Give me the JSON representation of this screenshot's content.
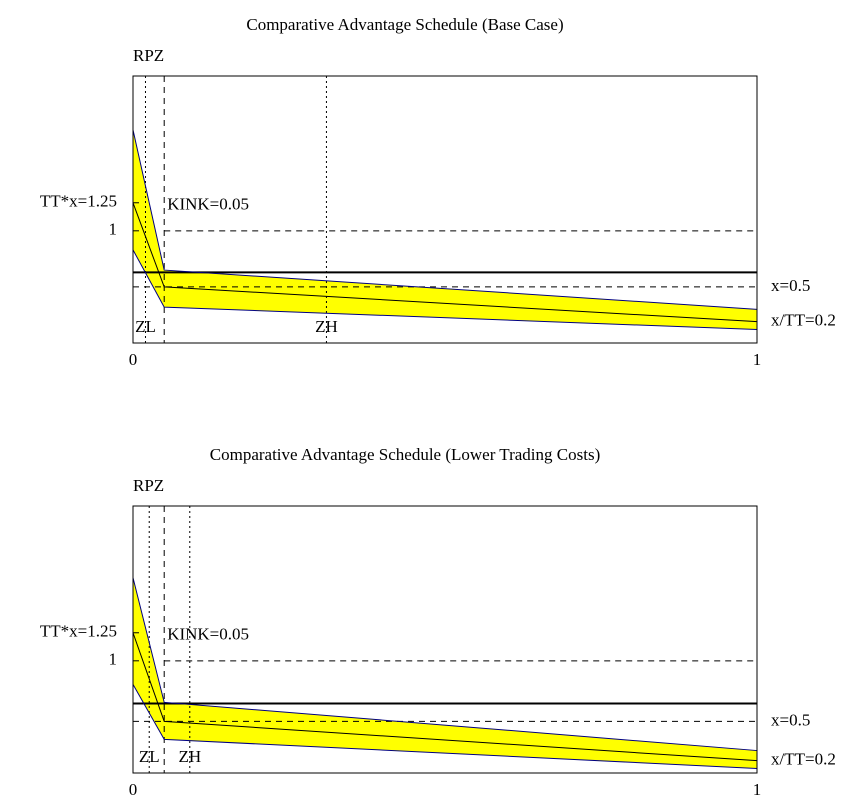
{
  "chart_data": [
    {
      "type": "line",
      "title": "Comparative Advantage Schedule (Base Case)",
      "axis_label": "RPZ",
      "xlim": [
        0,
        1
      ],
      "xticks": [
        0,
        1
      ],
      "ylim": [
        0,
        2.38
      ],
      "yticks": [
        {
          "value": 1.25,
          "label": "TT*x=1.25"
        },
        1
      ],
      "x": [
        0,
        0.05,
        1
      ],
      "band_color": "#ffff00",
      "series": [
        {
          "color": "#000080",
          "values": [
            1.9,
            0.65,
            0.3
          ]
        },
        {
          "color": "#000000",
          "values": [
            1.25,
            0.5,
            0.19
          ],
          "end_label": "x/TT=0.2"
        },
        {
          "color": "#000080",
          "values": [
            0.83,
            0.32,
            0.12
          ]
        }
      ],
      "hlines": [
        {
          "value": 1,
          "style": "dashed",
          "from": 0.05
        },
        {
          "value": 0.5,
          "style": "dashed",
          "label": "x=0.5"
        },
        {
          "value": 0.63,
          "style": "solid"
        }
      ],
      "vlines": [
        {
          "value": 0.02,
          "style": "dotted",
          "label": "ZL"
        },
        {
          "value": 0.05,
          "style": "dashed",
          "label": "KINK=0.05"
        },
        {
          "value": 0.31,
          "style": "dotted",
          "label": "ZH"
        }
      ]
    },
    {
      "type": "line",
      "title": "Comparative Advantage Schedule (Lower Trading Costs)",
      "axis_label": "RPZ",
      "xlim": [
        0,
        1
      ],
      "xticks": [
        0,
        1
      ],
      "ylim": [
        0,
        2.38
      ],
      "yticks": [
        {
          "value": 1.25,
          "label": "TT*x=1.25"
        },
        1
      ],
      "x": [
        0,
        0.05,
        1
      ],
      "band_color": "#ffff00",
      "series": [
        {
          "color": "#000080",
          "values": [
            1.74,
            0.63,
            0.2
          ]
        },
        {
          "color": "#000000",
          "values": [
            1.25,
            0.46,
            0.11
          ],
          "end_label": "x/TT=0.2"
        },
        {
          "color": "#000080",
          "values": [
            0.79,
            0.3,
            0.04
          ]
        }
      ],
      "hlines": [
        {
          "value": 1,
          "style": "dashed",
          "from": 0.05
        },
        {
          "value": 0.46,
          "style": "dashed",
          "label": "x=0.5"
        },
        {
          "value": 0.62,
          "style": "solid"
        }
      ],
      "vlines": [
        {
          "value": 0.026,
          "style": "dotted",
          "label": "ZL"
        },
        {
          "value": 0.05,
          "style": "dashed",
          "label": "KINK=0.05"
        },
        {
          "value": 0.091,
          "style": "dotted",
          "label": "ZH"
        }
      ]
    }
  ]
}
